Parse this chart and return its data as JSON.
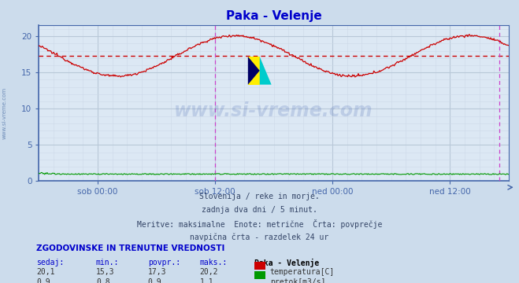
{
  "title": "Paka - Velenje",
  "title_color": "#0000cc",
  "bg_color": "#ccdcec",
  "plot_bg_color": "#dce8f4",
  "grid_color_major": "#b8c8d8",
  "grid_color_minor": "#ccd8e8",
  "x_tick_labels": [
    "sob 00:00",
    "sob 12:00",
    "ned 00:00",
    "ned 12:00"
  ],
  "x_tick_positions": [
    0.125,
    0.375,
    0.625,
    0.875
  ],
  "y_ticks": [
    0,
    5,
    10,
    15,
    20
  ],
  "ylim": [
    0,
    21.5
  ],
  "temp_avg": 17.3,
  "temp_color": "#cc0000",
  "flow_color": "#009900",
  "avg_line_color": "#cc0000",
  "vert_line_color": "#cc44cc",
  "axis_color": "#4466aa",
  "watermark": "www.si-vreme.com",
  "watermark_color": "#3355aa",
  "watermark_alpha": 0.18,
  "info_lines": [
    "Slovenija / reke in morje.",
    "zadnja dva dni / 5 minut.",
    "Meritve: maksimalne  Enote: metrične  Črta: povprečje",
    "navpična črta - razdelek 24 ur"
  ],
  "table_header": "ZGODOVINSKE IN TRENUTNE VREDNOSTI",
  "table_cols": [
    "sedaj:",
    "min.:",
    "povpr.:",
    "maks.:",
    "Paka - Velenje"
  ],
  "table_row1": [
    "20,1",
    "15,3",
    "17,3",
    "20,2",
    "temperatura[C]"
  ],
  "table_row2": [
    "0,9",
    "0,8",
    "0,9",
    "1,1",
    "pretok[m3/s]"
  ],
  "legend_temp_color": "#cc0000",
  "legend_flow_color": "#009900",
  "n_points": 576,
  "total_hours": 48
}
